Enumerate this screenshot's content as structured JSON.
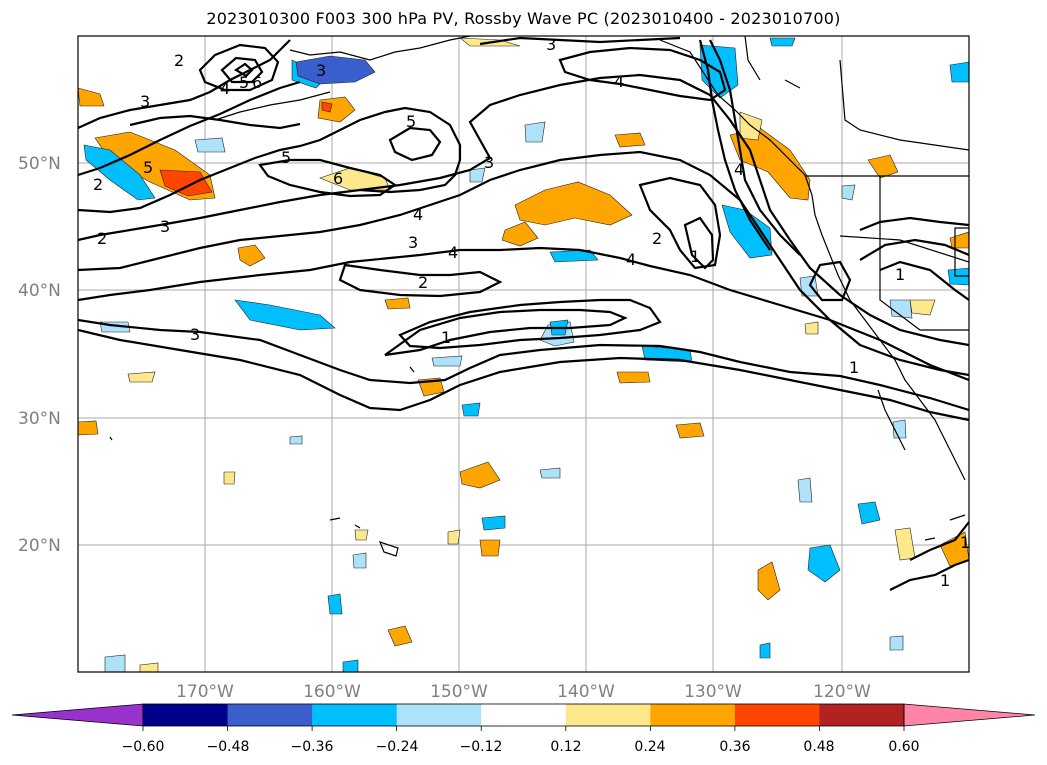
{
  "title": "2023010300 F003 300 hPa PV, Rossby Wave PC (2023010400 - 2023010700)",
  "map": {
    "lon_range": [
      -180,
      -110
    ],
    "lat_range": [
      10,
      60
    ],
    "lat_labels": [
      "20°N",
      "30°N",
      "40°N",
      "50°N"
    ],
    "lon_labels": [
      "170°W",
      "160°W",
      "150°W",
      "140°W",
      "130°W",
      "120°W"
    ],
    "contour_labels": [
      "3",
      "2",
      "4",
      "5",
      "6",
      "3",
      "3",
      "4",
      "5",
      "5",
      "6",
      "3",
      "2",
      "3",
      "4",
      "3",
      "4",
      "2",
      "4",
      "2",
      "1",
      "4",
      "1",
      "1",
      "5",
      "2",
      "3",
      "1",
      "1",
      "1"
    ]
  },
  "colorbar": {
    "ticks": [
      "−0.60",
      "−0.48",
      "−0.36",
      "−0.24",
      "−0.12",
      "0.12",
      "0.24",
      "0.36",
      "0.48",
      "0.60"
    ],
    "colors": [
      "#9932cc",
      "#00008b",
      "#3a5fcd",
      "#00bfff",
      "#aee2fa",
      "#ffffff",
      "#fde98c",
      "#ffa500",
      "#ff4500",
      "#b22222",
      "#ff85a8"
    ]
  }
}
